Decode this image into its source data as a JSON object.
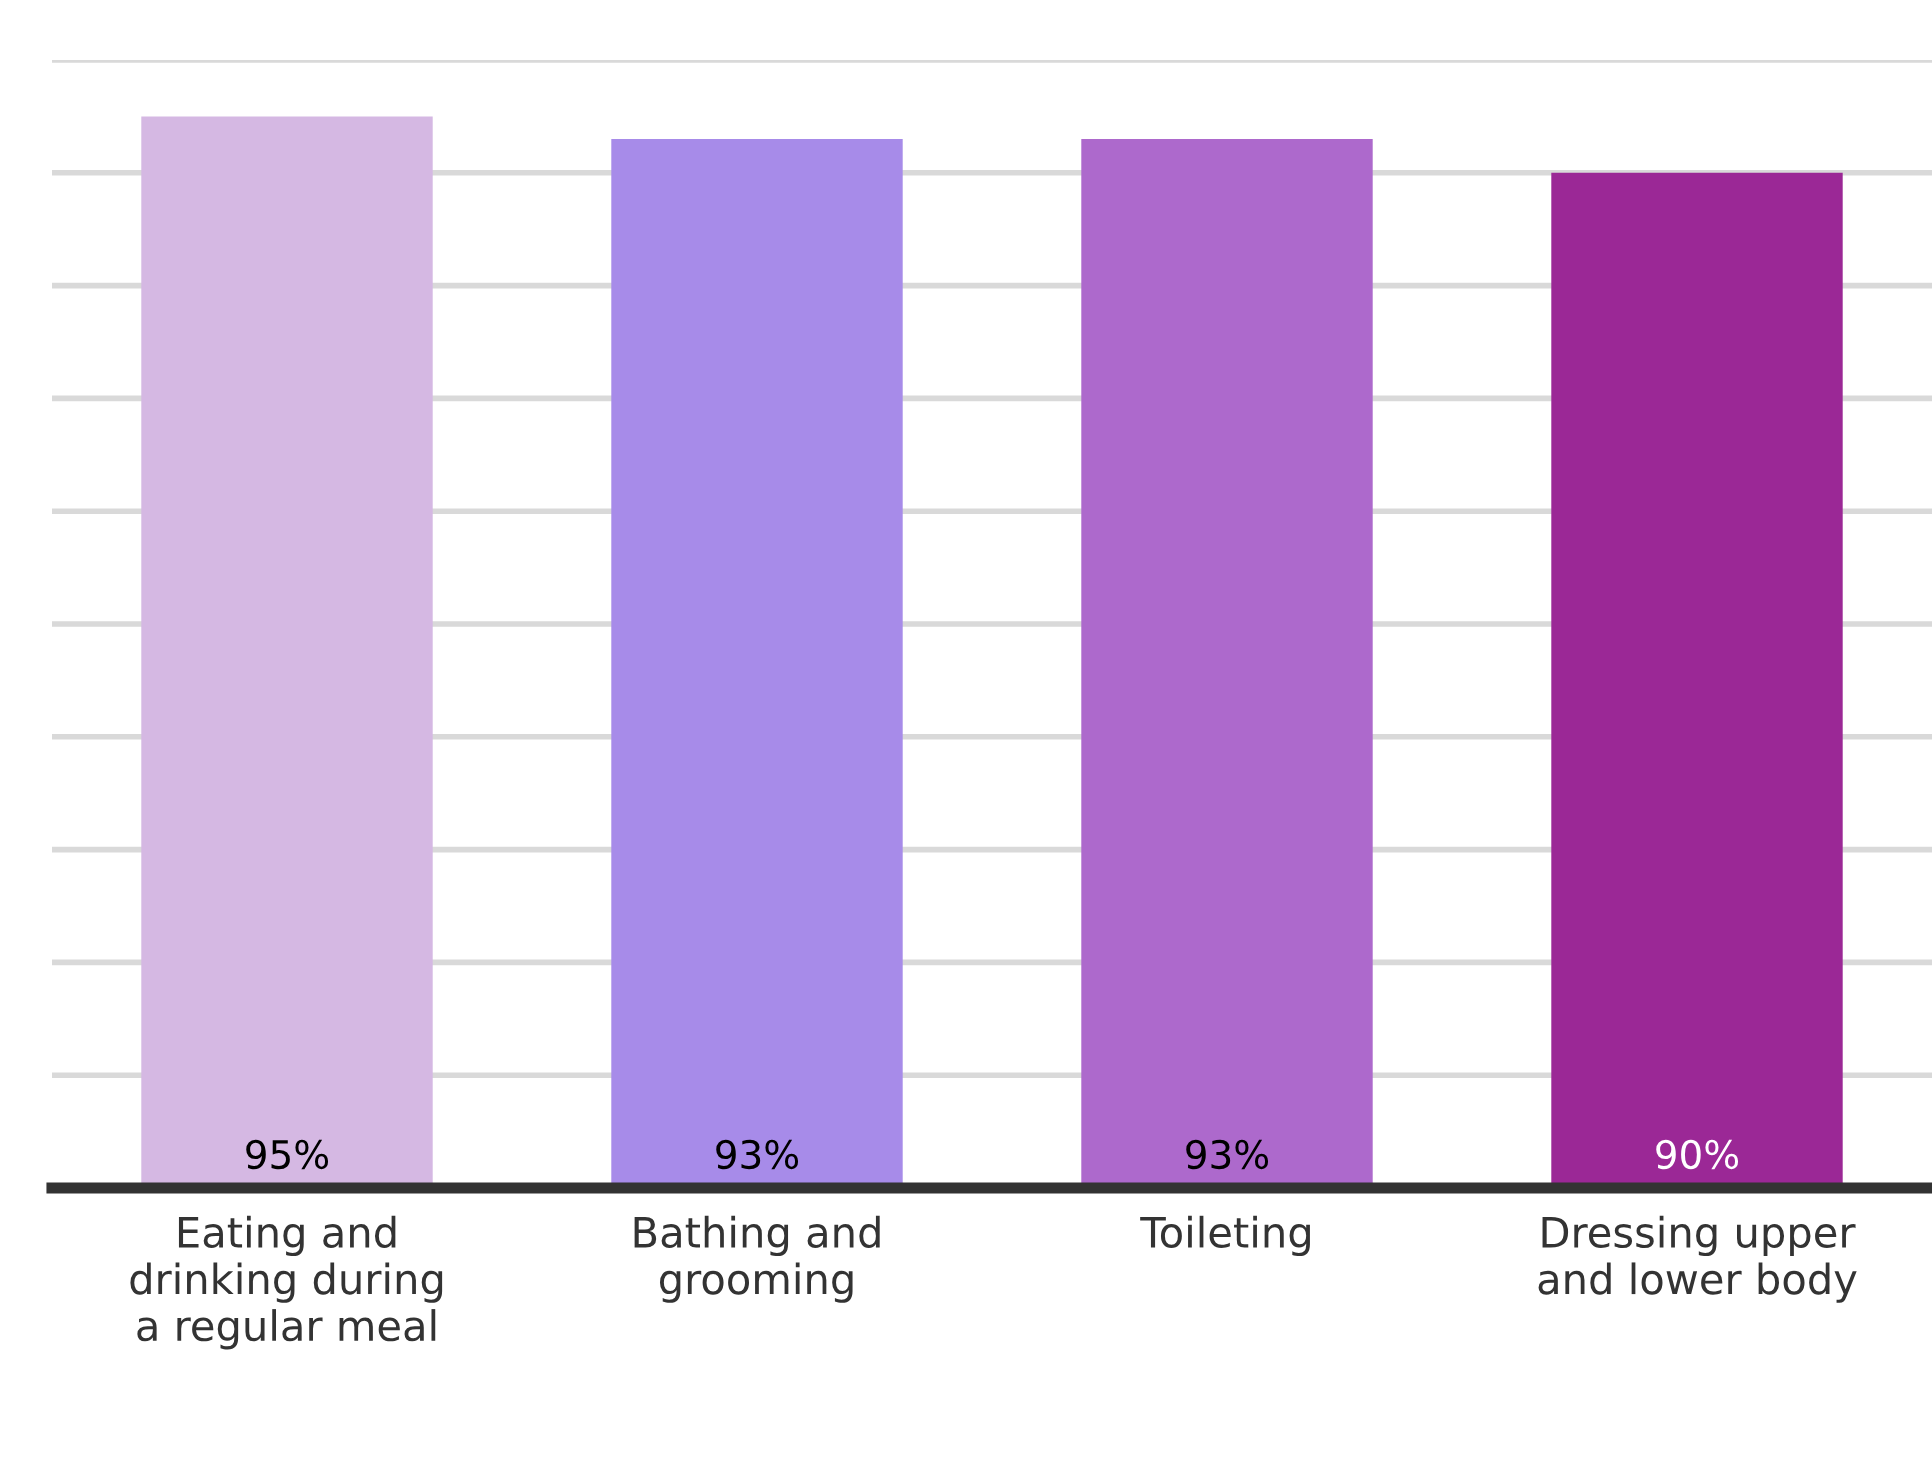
{
  "chart_data": {
    "type": "bar",
    "categories": [
      "Eating and\ndrinking during\na regular meal",
      "Bathing and\ngrooming",
      "Toileting",
      "Dressing upper\nand lower body"
    ],
    "values": [
      95,
      93,
      93,
      90
    ],
    "colors": [
      "#d5b8e3",
      "#a78be9",
      "#ad69cc",
      "#9b2896"
    ],
    "value_labels": [
      "95%",
      "93%",
      "93%",
      "90%"
    ],
    "ylim": [
      0,
      100
    ],
    "yticks": [
      {
        "value": 0,
        "label": null
      },
      {
        "value": 10,
        "label": null
      },
      {
        "value": 20,
        "label": null
      },
      {
        "value": 30,
        "label": null
      },
      {
        "value": 40,
        "label": null
      },
      {
        "value": 50,
        "label": null
      },
      {
        "value": 60,
        "label": null
      },
      {
        "value": 70,
        "label": null
      },
      {
        "value": 80,
        "label": null
      },
      {
        "value": 90,
        "label": null
      },
      {
        "value": 100,
        "label": null
      }
    ],
    "tick_labels": "x",
    "grid": "y"
  }
}
